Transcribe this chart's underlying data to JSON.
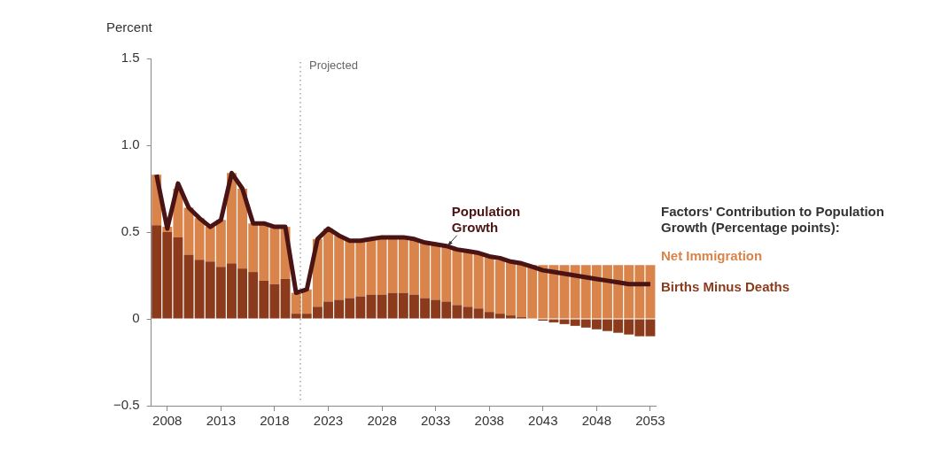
{
  "chart_data": {
    "type": "bar",
    "stacked": true,
    "ylabel": "Percent",
    "legend_title": "Factors' Contribution to Population Growth (Percentage points):",
    "legend": "right",
    "grid": false,
    "x": [
      2007,
      2008,
      2009,
      2010,
      2011,
      2012,
      2013,
      2014,
      2015,
      2016,
      2017,
      2018,
      2019,
      2020,
      2021,
      2022,
      2023,
      2024,
      2025,
      2026,
      2027,
      2028,
      2029,
      2030,
      2031,
      2032,
      2033,
      2034,
      2035,
      2036,
      2037,
      2038,
      2039,
      2040,
      2041,
      2042,
      2043,
      2044,
      2045,
      2046,
      2047,
      2048,
      2049,
      2050,
      2051,
      2052,
      2053
    ],
    "xlim": [
      2006.5,
      2053.5
    ],
    "xticks": [
      2008,
      2013,
      2018,
      2023,
      2028,
      2033,
      2038,
      2043,
      2048,
      2053
    ],
    "ylim": [
      -0.5,
      1.5
    ],
    "yticks": [
      {
        "value": -0.5,
        "label": "−0.5"
      },
      {
        "value": 0,
        "label": "0"
      },
      {
        "value": 0.5,
        "label": "0.5"
      },
      {
        "value": 1,
        "label": "1.0"
      },
      {
        "value": 1.5,
        "label": "1.5"
      }
    ],
    "series": [
      {
        "name": "Births Minus Deaths",
        "color": "#8b3a1c",
        "values": [
          0.54,
          0.5,
          0.47,
          0.37,
          0.34,
          0.33,
          0.3,
          0.32,
          0.29,
          0.27,
          0.22,
          0.2,
          0.23,
          0.03,
          0.03,
          0.07,
          0.1,
          0.11,
          0.12,
          0.13,
          0.14,
          0.14,
          0.15,
          0.15,
          0.14,
          0.12,
          0.11,
          0.1,
          0.08,
          0.07,
          0.06,
          0.04,
          0.03,
          0.02,
          0.01,
          0,
          -0.01,
          -0.02,
          -0.03,
          -0.04,
          -0.05,
          -0.06,
          -0.07,
          -0.08,
          -0.09,
          -0.1,
          -0.1
        ]
      },
      {
        "name": "Net Immigration",
        "color": "#d9844a",
        "values": [
          0.29,
          0.03,
          0.28,
          0.27,
          0.24,
          0.2,
          0.27,
          0.52,
          0.46,
          0.28,
          0.33,
          0.33,
          0.3,
          0.12,
          0.14,
          0.39,
          0.42,
          0.37,
          0.33,
          0.32,
          0.32,
          0.32,
          0.32,
          0.32,
          0.32,
          0.32,
          0.32,
          0.32,
          0.32,
          0.32,
          0.32,
          0.32,
          0.31,
          0.31,
          0.31,
          0.31,
          0.31,
          0.31,
          0.31,
          0.31,
          0.31,
          0.31,
          0.31,
          0.31,
          0.31,
          0.31,
          0.31
        ]
      },
      {
        "type": "line",
        "color": "#4a1414",
        "values": [
          0.83,
          0.52,
          0.78,
          0.64,
          0.58,
          0.53,
          0.57,
          0.84,
          0.75,
          0.55,
          0.55,
          0.53,
          0.53,
          0.15,
          0.17,
          0.46,
          0.52,
          0.48,
          0.45,
          0.45,
          0.46,
          0.47,
          0.47,
          0.47,
          0.46,
          0.44,
          0.43,
          0.42,
          0.4,
          0.39,
          0.38,
          0.36,
          0.35,
          0.33,
          0.32,
          0.3,
          0.28,
          0.27,
          0.26,
          0.25,
          0.24,
          0.23,
          0.22,
          0.21,
          0.2,
          0.2,
          0.2
        ]
      }
    ],
    "ref_lines": [
      {
        "axis": "x",
        "value": 2020.4,
        "label": "Projected",
        "color": "#777777",
        "line_style": "dotted"
      }
    ],
    "annotations": [
      {
        "text": "Population Growth",
        "x": 2034,
        "y": 0.41
      }
    ]
  }
}
